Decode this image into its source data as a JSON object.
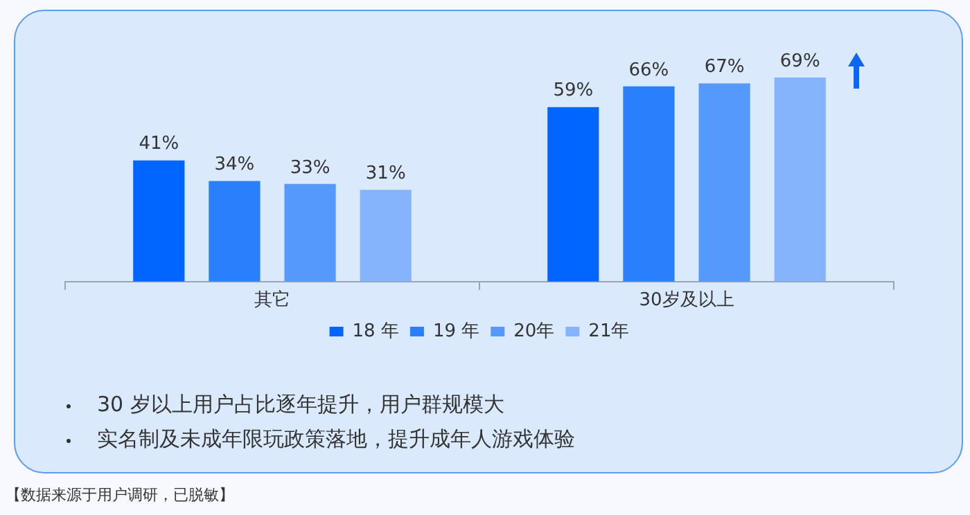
{
  "chart_data": {
    "type": "bar",
    "categories": [
      "其它",
      "30岁及以上"
    ],
    "series": [
      {
        "name": "18 年",
        "color": "#0066ff",
        "values": [
          41,
          59
        ],
        "value_labels": [
          "41%",
          "59%"
        ]
      },
      {
        "name": "19 年",
        "color": "#2a7ffc",
        "values": [
          34,
          66
        ],
        "value_labels": [
          "34%",
          "66%"
        ]
      },
      {
        "name": "20年",
        "color": "#5599fc",
        "values": [
          33,
          67
        ],
        "value_labels": [
          "33%",
          "67%"
        ]
      },
      {
        "name": "21年",
        "color": "#85b4fd",
        "values": [
          31,
          69
        ],
        "value_labels": [
          "31%",
          "69%"
        ]
      }
    ],
    "legend": "bottom",
    "annotations": [
      "30 岁以上用户占比逐年提升，用户群规模大",
      "实名制及未成年限玩政策落地，提升成年人游戏体验",
      "【数据来源于用户调研，已脱敏】"
    ]
  }
}
